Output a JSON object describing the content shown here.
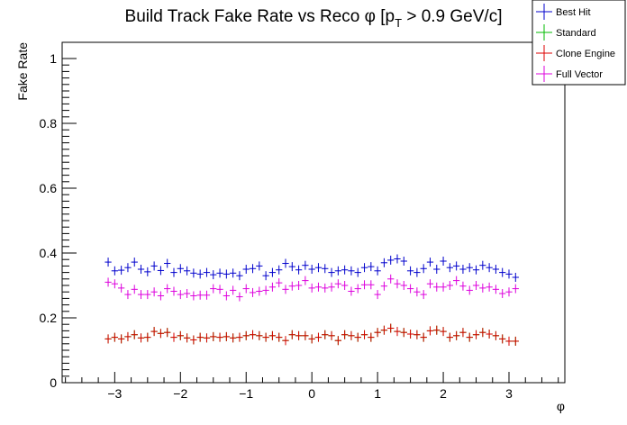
{
  "chart_data": {
    "type": "scatter",
    "title_main": "Build Track Fake Rate vs Reco ",
    "title_phi": "φ",
    "title_bracket": " [p",
    "title_sub": "T",
    "title_rest": " > 0.9 GeV/c]",
    "xlabel": "φ",
    "ylabel": "Fake Rate",
    "xlim": [
      -3.8,
      3.85
    ],
    "ylim": [
      0,
      1.05
    ],
    "grid": false,
    "legend_position": "top-right",
    "x_ticks": [
      -3,
      -2,
      -1,
      0,
      1,
      2,
      3
    ],
    "x_tick_labels": [
      "−3",
      "−2",
      "−1",
      "0",
      "1",
      "2",
      "3"
    ],
    "y_ticks": [
      0,
      0.2,
      0.4,
      0.6,
      0.8,
      1
    ],
    "y_tick_labels": [
      "0",
      "0.2",
      "0.4",
      "0.6",
      "0.8",
      "1"
    ],
    "x": [
      -3.1,
      -3.0,
      -2.9,
      -2.8,
      -2.7,
      -2.6,
      -2.5,
      -2.4,
      -2.3,
      -2.2,
      -2.1,
      -2.0,
      -1.9,
      -1.8,
      -1.7,
      -1.6,
      -1.5,
      -1.4,
      -1.3,
      -1.2,
      -1.1,
      -1.0,
      -0.9,
      -0.8,
      -0.7,
      -0.6,
      -0.5,
      -0.4,
      -0.3,
      -0.2,
      -0.1,
      0.0,
      0.1,
      0.2,
      0.3,
      0.4,
      0.5,
      0.6,
      0.7,
      0.8,
      0.9,
      1.0,
      1.1,
      1.2,
      1.3,
      1.4,
      1.5,
      1.6,
      1.7,
      1.8,
      1.9,
      2.0,
      2.1,
      2.2,
      2.3,
      2.4,
      2.5,
      2.6,
      2.7,
      2.8,
      2.9,
      3.0,
      3.1
    ],
    "series": [
      {
        "name": "Best Hit",
        "color": "#0000cc",
        "values": [
          0.372,
          0.345,
          0.347,
          0.355,
          0.372,
          0.35,
          0.342,
          0.36,
          0.346,
          0.368,
          0.34,
          0.352,
          0.345,
          0.338,
          0.335,
          0.34,
          0.333,
          0.338,
          0.335,
          0.338,
          0.33,
          0.35,
          0.352,
          0.36,
          0.33,
          0.34,
          0.348,
          0.368,
          0.358,
          0.348,
          0.362,
          0.35,
          0.355,
          0.352,
          0.34,
          0.345,
          0.348,
          0.345,
          0.34,
          0.355,
          0.358,
          0.345,
          0.37,
          0.378,
          0.382,
          0.375,
          0.345,
          0.34,
          0.352,
          0.372,
          0.35,
          0.375,
          0.355,
          0.36,
          0.35,
          0.355,
          0.348,
          0.362,
          0.355,
          0.35,
          0.34,
          0.335,
          0.325
        ]
      },
      {
        "name": "Standard",
        "color": "#00bb00",
        "values": [
          0.135,
          0.14,
          0.135,
          0.142,
          0.148,
          0.138,
          0.14,
          0.158,
          0.152,
          0.155,
          0.14,
          0.145,
          0.138,
          0.132,
          0.14,
          0.138,
          0.142,
          0.14,
          0.142,
          0.138,
          0.14,
          0.145,
          0.148,
          0.145,
          0.14,
          0.145,
          0.14,
          0.13,
          0.148,
          0.145,
          0.145,
          0.135,
          0.14,
          0.148,
          0.145,
          0.13,
          0.148,
          0.145,
          0.14,
          0.148,
          0.14,
          0.155,
          0.162,
          0.168,
          0.158,
          0.155,
          0.15,
          0.148,
          0.14,
          0.16,
          0.162,
          0.158,
          0.14,
          0.145,
          0.155,
          0.14,
          0.148,
          0.155,
          0.15,
          0.145,
          0.135,
          0.128,
          0.128
        ]
      },
      {
        "name": "Clone Engine",
        "color": "#dd0000",
        "values": [
          0.135,
          0.14,
          0.135,
          0.142,
          0.148,
          0.138,
          0.14,
          0.158,
          0.152,
          0.155,
          0.14,
          0.145,
          0.138,
          0.132,
          0.14,
          0.138,
          0.142,
          0.14,
          0.142,
          0.138,
          0.14,
          0.145,
          0.148,
          0.145,
          0.14,
          0.145,
          0.14,
          0.13,
          0.148,
          0.145,
          0.145,
          0.135,
          0.14,
          0.148,
          0.145,
          0.13,
          0.148,
          0.145,
          0.14,
          0.148,
          0.14,
          0.155,
          0.162,
          0.168,
          0.158,
          0.155,
          0.15,
          0.148,
          0.14,
          0.16,
          0.162,
          0.158,
          0.14,
          0.145,
          0.155,
          0.14,
          0.148,
          0.155,
          0.15,
          0.145,
          0.135,
          0.128,
          0.128
        ]
      },
      {
        "name": "Full Vector",
        "color": "#dd00dd",
        "values": [
          0.31,
          0.305,
          0.292,
          0.272,
          0.288,
          0.272,
          0.272,
          0.28,
          0.268,
          0.29,
          0.282,
          0.272,
          0.275,
          0.268,
          0.27,
          0.27,
          0.29,
          0.288,
          0.268,
          0.285,
          0.265,
          0.29,
          0.278,
          0.282,
          0.285,
          0.295,
          0.308,
          0.288,
          0.298,
          0.3,
          0.315,
          0.292,
          0.295,
          0.292,
          0.295,
          0.305,
          0.3,
          0.282,
          0.29,
          0.302,
          0.302,
          0.272,
          0.298,
          0.32,
          0.305,
          0.3,
          0.29,
          0.28,
          0.272,
          0.305,
          0.295,
          0.295,
          0.3,
          0.315,
          0.298,
          0.285,
          0.3,
          0.292,
          0.295,
          0.288,
          0.275,
          0.28,
          0.29
        ]
      }
    ]
  }
}
